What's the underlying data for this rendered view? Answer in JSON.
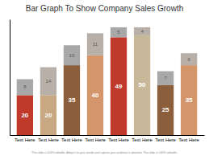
{
  "chart_data": {
    "type": "bar",
    "stacked": true,
    "title": "Bar Graph To Show Company Sales Growth",
    "subtitle": "This slide is 100% editable. Adapt it to your needs and capture your audience's attention. This slide is 100% editable.",
    "categories": [
      "Text Here",
      "Text Here",
      "Text Here",
      "Text Here",
      "Text Here",
      "Text Here",
      "Text Here",
      "Text Here"
    ],
    "series": [
      {
        "colors": [
          "#c0392b",
          "#c8a882",
          "#8b5e3c",
          "#d4956a",
          "#c0392b",
          "#c8b89a",
          "#8b5e3c",
          "#d4956a"
        ],
        "values": [
          20,
          20,
          35,
          40,
          49,
          50,
          25,
          35
        ]
      },
      {
        "colors": [
          "#a8a8a8",
          "#b8b0a8",
          "#a8a8a8",
          "#b8b0a8",
          "#a8a8a8",
          "#b8b0a8",
          "#a8a8a8",
          "#b8b0a8"
        ],
        "values": [
          8,
          14,
          10,
          11,
          5,
          4,
          7,
          6
        ]
      }
    ],
    "ylim": [
      0,
      58
    ],
    "yticks": [],
    "data_labels": true,
    "tick_labels": "x",
    "grid": false
  }
}
